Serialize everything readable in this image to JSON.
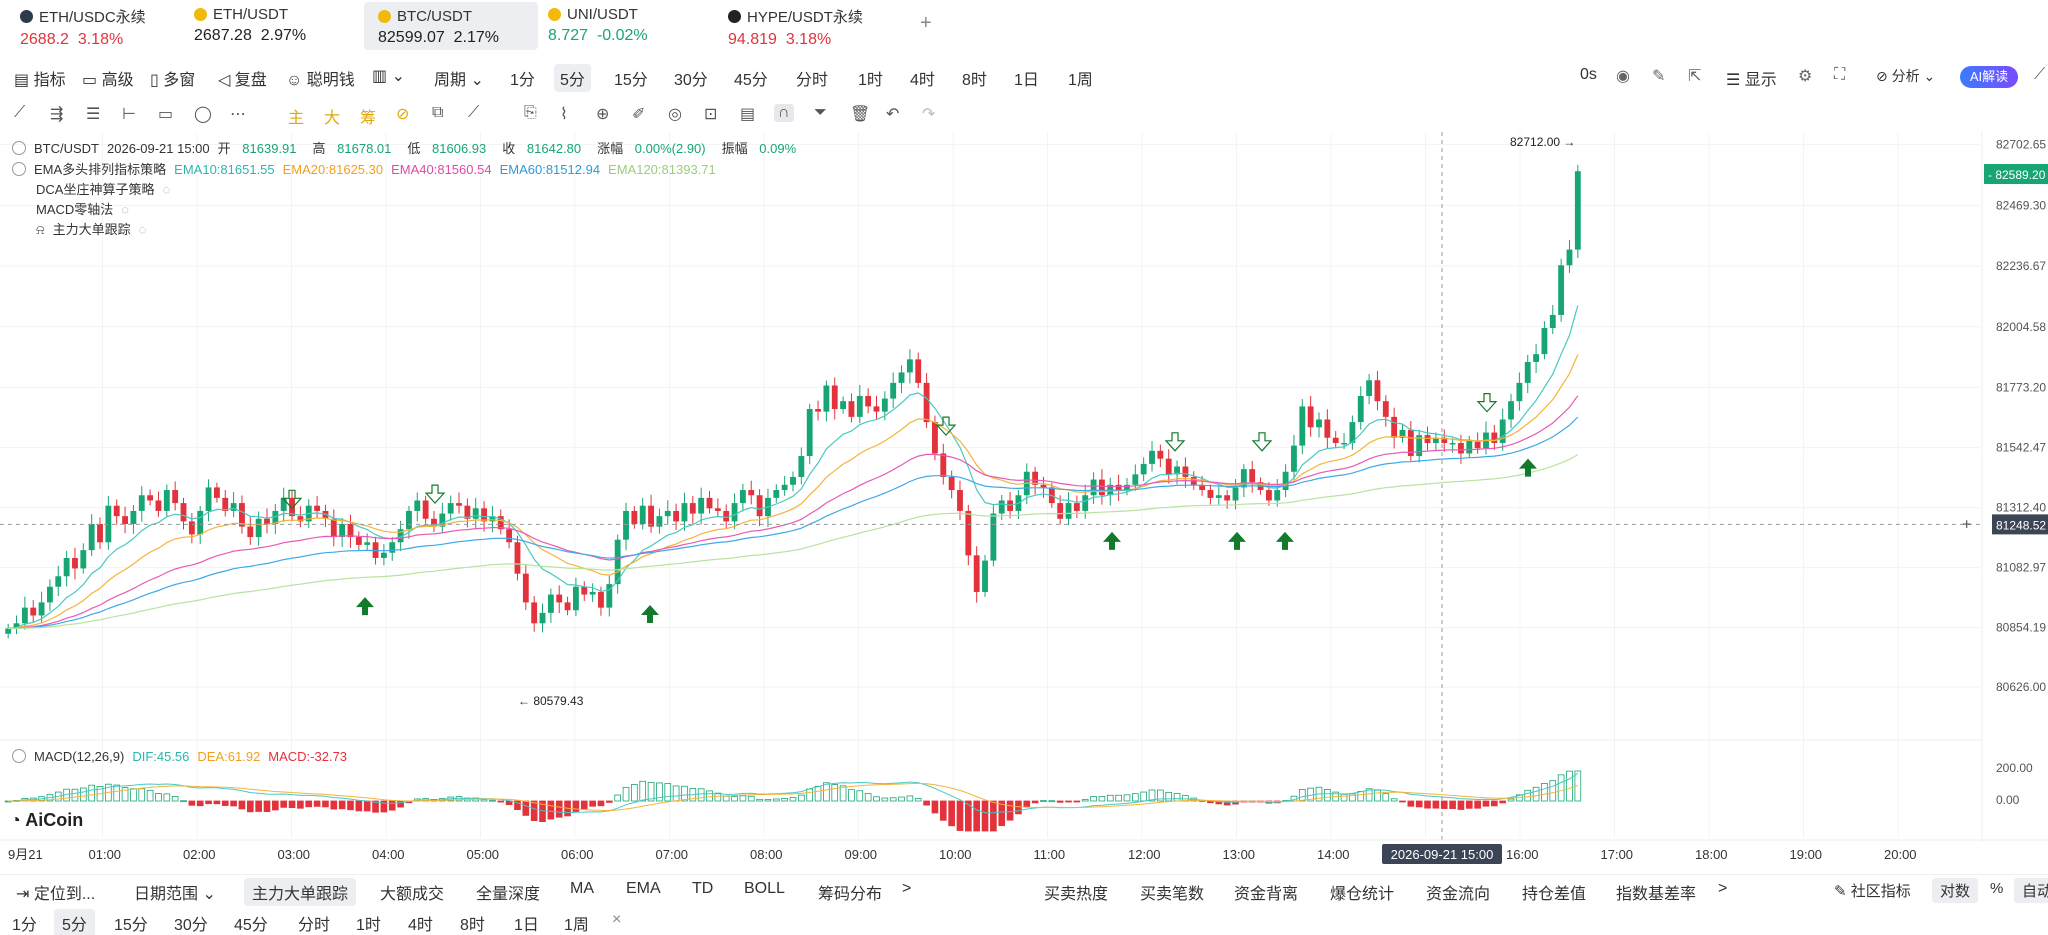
{
  "tabs": [
    {
      "name": "ETH/USDC永续",
      "price": "2688.2",
      "change": "3.18%",
      "dir": "dn",
      "icon_color": "#2d3a4b"
    },
    {
      "name": "ETH/USDT",
      "price": "2687.28",
      "change": "2.97%",
      "dir": "none",
      "icon_color": "#f0b90b"
    },
    {
      "name": "BTC/USDT",
      "price": "82599.07",
      "change": "2.17%",
      "dir": "none",
      "icon_color": "#f0b90b"
    },
    {
      "name": "UNI/USDT",
      "price": "8.727",
      "change": "-0.02%",
      "dir": "up",
      "icon_color": "#f0b90b"
    },
    {
      "name": "HYPE/USDT永续",
      "price": "94.819",
      "change": "3.18%",
      "dir": "dn",
      "icon_color": "#222222"
    }
  ],
  "add_tab": "+",
  "toolbar": {
    "items": [
      "指标",
      "高级",
      "多窗",
      "复盘",
      "聪明钱",
      "周期",
      "1分",
      "5分",
      "15分",
      "30分",
      "45分",
      "分时",
      "1时",
      "4时",
      "8时",
      "1日",
      "1周"
    ],
    "selected_period": "5分",
    "right": {
      "latency": "0s",
      "display": "显示",
      "analysis": "分析",
      "ai": "AI解读"
    }
  },
  "drawing_tools": {
    "labels": [
      "主",
      "大",
      "筹"
    ]
  },
  "chart_info": {
    "line1": {
      "symbol": "BTC/USDT",
      "time": "2026-09-21 15:00",
      "open_label": "开",
      "open": "81639.91",
      "high_label": "高",
      "high": "81678.01",
      "low_label": "低",
      "low": "81606.93",
      "close_label": "收",
      "close": "81642.80",
      "chg_label": "涨幅",
      "chg": "0.00%(2.90)",
      "amp_label": "振幅",
      "amp": "0.09%"
    },
    "line2": {
      "name": "EMA多头排列指标策略",
      "ema10": "EMA10:81651.55",
      "ema20": "EMA20:81625.30",
      "ema40": "EMA40:81560.54",
      "ema60": "EMA60:81512.94",
      "ema120": "EMA120:81393.71"
    },
    "line3": "DCA坐庄神算子策略",
    "line4": "MACD零轴法",
    "line5": "主力大单跟踪",
    "macd": {
      "name": "MACD(12,26,9)",
      "dif": "DIF:45.56",
      "dea": "DEA:61.92",
      "macd": "MACD:-32.73"
    },
    "logo": "AiCoin"
  },
  "chart_data": {
    "type": "candlestick",
    "price_axis": [
      "82702.65",
      "82469.30",
      "82236.67",
      "82004.58",
      "81773.20",
      "81542.47",
      "81312.40",
      "81082.97",
      "80854.19",
      "80626.00"
    ],
    "price_marks": {
      "current": "82589.20",
      "crosshair": "81248.52",
      "high": "82712.00",
      "low": "80579.43"
    },
    "macd_axis": [
      "200.00",
      "0.00"
    ],
    "time_axis": [
      "9月21",
      "01:00",
      "02:00",
      "03:00",
      "04:00",
      "05:00",
      "06:00",
      "07:00",
      "08:00",
      "09:00",
      "10:00",
      "11:00",
      "12:00",
      "13:00",
      "14:00",
      "2026-09-21 15:00",
      "16:00",
      "17:00",
      "18:00",
      "19:00",
      "20:00"
    ],
    "ylim": [
      80500,
      82750
    ],
    "colors": {
      "up": "#17a673",
      "down": "#e3323b",
      "ema10": "#48c9c1",
      "ema20": "#f5b43a",
      "ema40": "#e85ab4",
      "ema60": "#3fa9e8",
      "ema120": "#b7e3a0"
    },
    "closes": [
      80850,
      80870,
      80930,
      80900,
      80950,
      81010,
      81050,
      81120,
      81080,
      81150,
      81250,
      81180,
      81320,
      81280,
      81250,
      81300,
      81360,
      81340,
      81300,
      81380,
      81330,
      81260,
      81210,
      81300,
      81390,
      81350,
      81300,
      81330,
      81240,
      81200,
      81270,
      81250,
      81300,
      81350,
      81280,
      81260,
      81320,
      81300,
      81270,
      81200,
      81250,
      81200,
      81170,
      81180,
      81120,
      81140,
      81180,
      81230,
      81300,
      81340,
      81270,
      81240,
      81290,
      81330,
      81320,
      81270,
      81310,
      81260,
      81280,
      81230,
      81180,
      81060,
      80950,
      80870,
      80910,
      80980,
      80950,
      80920,
      81010,
      80980,
      80990,
      80930,
      81020,
      81190,
      81300,
      81250,
      81320,
      81240,
      81280,
      81300,
      81260,
      81330,
      81290,
      81350,
      81310,
      81300,
      81260,
      81330,
      81380,
      81360,
      81280,
      81350,
      81380,
      81400,
      81430,
      81510,
      81690,
      81680,
      81780,
      81690,
      81720,
      81660,
      81740,
      81700,
      81680,
      81730,
      81790,
      81830,
      81880,
      81790,
      81640,
      81520,
      81430,
      81380,
      81300,
      81130,
      80990,
      81110,
      81290,
      81340,
      81300,
      81360,
      81450,
      81400,
      81390,
      81330,
      81270,
      81330,
      81300,
      81360,
      81420,
      81360,
      81400,
      81380,
      81400,
      81440,
      81480,
      81530,
      81500,
      81440,
      81470,
      81430,
      81400,
      81380,
      81350,
      81360,
      81340,
      81390,
      81460,
      81410,
      81380,
      81340,
      81380,
      81450,
      81550,
      81700,
      81620,
      81650,
      81580,
      81560,
      81560,
      81640,
      81740,
      81800,
      81720,
      81660,
      81580,
      81610,
      81510,
      81590,
      81560,
      81580,
      81560,
      81560,
      81520,
      81570,
      81540,
      81600,
      81560,
      81650,
      81720,
      81790,
      81870,
      81900,
      82000,
      82050,
      82240,
      82300,
      82600
    ]
  },
  "bottom_bar": {
    "left": [
      "定位到...",
      "日期范围",
      "主力大单跟踪",
      "大额成交",
      "全量深度",
      "MA",
      "EMA",
      "TD",
      "BOLL",
      "筹码分布",
      ">"
    ],
    "right": [
      "买卖热度",
      "买卖笔数",
      "资金背离",
      "爆仓统计",
      "资金流向",
      "持仓差值",
      "指数基差率",
      ">"
    ],
    "far": [
      "社区指标",
      "对数",
      "%",
      "自动"
    ]
  },
  "period_bar": [
    "1分",
    "5分",
    "15分",
    "30分",
    "45分",
    "分时",
    "1时",
    "4时",
    "8时",
    "1日",
    "1周",
    "×"
  ]
}
